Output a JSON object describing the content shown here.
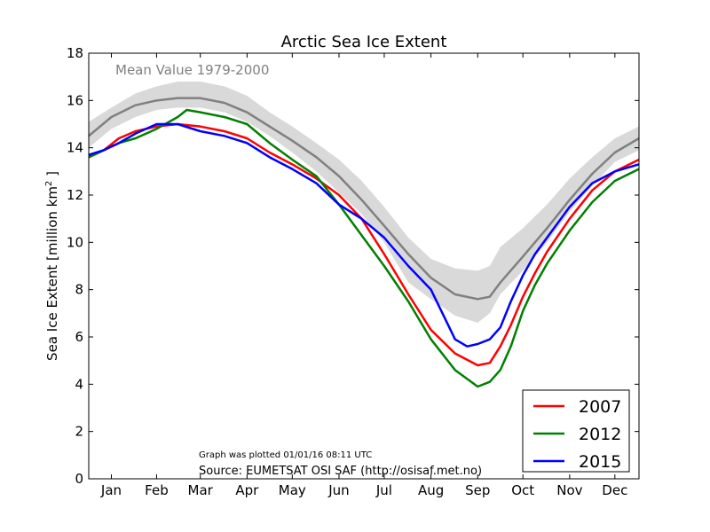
{
  "chart_data": {
    "type": "line",
    "title": "Arctic Sea Ice Extent",
    "ylabel_main": "Sea Ice Extent [million km",
    "ylabel_sup": "2",
    "ylabel_end": " ]",
    "xlabel": "",
    "xlim": [
      0,
      365
    ],
    "ylim": [
      0,
      18
    ],
    "yticks": [
      0,
      2,
      4,
      6,
      8,
      10,
      12,
      14,
      16,
      18
    ],
    "months": [
      {
        "label": "Jan",
        "day": 15
      },
      {
        "label": "Feb",
        "day": 45
      },
      {
        "label": "Mar",
        "day": 74
      },
      {
        "label": "Apr",
        "day": 105
      },
      {
        "label": "May",
        "day": 135
      },
      {
        "label": "Jun",
        "day": 166
      },
      {
        "label": "Jul",
        "day": 196
      },
      {
        "label": "Aug",
        "day": 227
      },
      {
        "label": "Sep",
        "day": 258
      },
      {
        "label": "Oct",
        "day": 288
      },
      {
        "label": "Nov",
        "day": 319
      },
      {
        "label": "Dec",
        "day": 349
      }
    ],
    "grid": false,
    "legend_position": "bottom-right",
    "mean_label": "Mean Value 1979-2000",
    "plotted_note": "Graph was plotted 01/01/16 08:11 UTC",
    "source_note": "Source: EUMETSAT OSI SAF (http://osisaf.met.no)",
    "band": {
      "x": [
        0,
        15,
        31,
        45,
        59,
        74,
        90,
        105,
        120,
        135,
        151,
        166,
        181,
        196,
        212,
        227,
        243,
        258,
        266,
        273,
        288,
        304,
        319,
        334,
        349,
        365
      ],
      "upper": [
        15.1,
        15.7,
        16.3,
        16.6,
        16.8,
        16.8,
        16.6,
        16.2,
        15.5,
        14.9,
        14.2,
        13.5,
        12.6,
        11.5,
        10.2,
        9.3,
        8.9,
        8.8,
        9.0,
        9.8,
        10.6,
        11.6,
        12.7,
        13.6,
        14.4,
        14.9
      ],
      "lower": [
        14.0,
        14.8,
        15.3,
        15.6,
        15.7,
        15.7,
        15.5,
        15.1,
        14.5,
        13.8,
        13.0,
        12.1,
        11.2,
        10.0,
        8.3,
        7.6,
        6.9,
        6.6,
        7.0,
        7.8,
        8.8,
        10.0,
        11.3,
        12.4,
        13.4,
        13.9
      ]
    },
    "series": [
      {
        "name": "Mean",
        "color": "#808080",
        "x": [
          0,
          15,
          31,
          45,
          59,
          74,
          90,
          105,
          120,
          135,
          151,
          166,
          181,
          196,
          212,
          227,
          243,
          258,
          266,
          273,
          288,
          304,
          319,
          334,
          349,
          365
        ],
        "y": [
          14.5,
          15.3,
          15.8,
          16.0,
          16.1,
          16.1,
          15.9,
          15.5,
          14.9,
          14.3,
          13.6,
          12.8,
          11.8,
          10.7,
          9.5,
          8.5,
          7.8,
          7.6,
          7.7,
          8.3,
          9.4,
          10.6,
          11.8,
          12.9,
          13.8,
          14.4
        ]
      },
      {
        "name": "2007",
        "color": "#ff0000",
        "x": [
          0,
          10,
          20,
          31,
          45,
          59,
          74,
          90,
          105,
          120,
          135,
          151,
          166,
          181,
          196,
          212,
          227,
          243,
          258,
          266,
          273,
          280,
          288,
          296,
          304,
          319,
          334,
          349,
          365
        ],
        "y": [
          13.6,
          13.9,
          14.4,
          14.7,
          14.9,
          15.0,
          14.9,
          14.7,
          14.4,
          13.8,
          13.3,
          12.7,
          12.0,
          11.0,
          9.5,
          7.8,
          6.3,
          5.3,
          4.8,
          4.9,
          5.6,
          6.5,
          7.7,
          8.7,
          9.6,
          11.0,
          12.2,
          13.0,
          13.5
        ]
      },
      {
        "name": "2012",
        "color": "#008000",
        "x": [
          0,
          10,
          20,
          31,
          45,
          59,
          65,
          74,
          90,
          105,
          120,
          135,
          151,
          166,
          181,
          196,
          212,
          227,
          243,
          258,
          266,
          273,
          280,
          288,
          296,
          304,
          319,
          334,
          349,
          365
        ],
        "y": [
          13.6,
          13.9,
          14.2,
          14.4,
          14.8,
          15.3,
          15.6,
          15.5,
          15.3,
          15.0,
          14.2,
          13.5,
          12.8,
          11.6,
          10.3,
          9.0,
          7.5,
          5.9,
          4.6,
          3.9,
          4.1,
          4.6,
          5.6,
          7.1,
          8.2,
          9.1,
          10.5,
          11.7,
          12.6,
          13.1
        ]
      },
      {
        "name": "2015",
        "color": "#0000ff",
        "x": [
          0,
          10,
          20,
          31,
          45,
          59,
          74,
          90,
          105,
          120,
          135,
          151,
          166,
          181,
          196,
          212,
          227,
          243,
          251,
          258,
          266,
          273,
          280,
          288,
          296,
          304,
          319,
          334,
          349,
          365
        ],
        "y": [
          13.7,
          13.9,
          14.2,
          14.6,
          15.0,
          15.0,
          14.7,
          14.5,
          14.2,
          13.6,
          13.1,
          12.5,
          11.6,
          11.0,
          10.2,
          9.0,
          8.0,
          5.9,
          5.6,
          5.7,
          5.9,
          6.4,
          7.5,
          8.6,
          9.5,
          10.2,
          11.5,
          12.5,
          13.0,
          13.3
        ]
      }
    ],
    "legend": [
      {
        "label": "2007",
        "color": "#ff0000"
      },
      {
        "label": "2012",
        "color": "#008000"
      },
      {
        "label": "2015",
        "color": "#0000ff"
      }
    ]
  }
}
